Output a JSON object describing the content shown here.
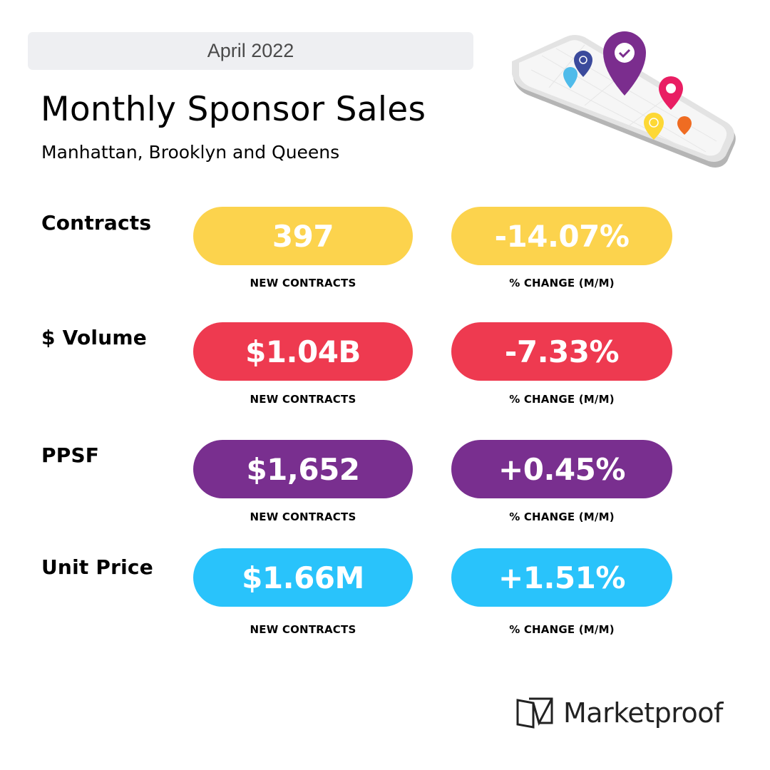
{
  "header": {
    "date": "April 2022",
    "title": "Monthly Sponsor Sales",
    "subtitle": "Manhattan, Brooklyn and Queens"
  },
  "illustration": {
    "icon": "phone-map-pins-icon",
    "pin_colors": [
      "#7b2d8e",
      "#3b4a9c",
      "#4fbbea",
      "#e91e63",
      "#fdd835",
      "#ef6c22"
    ]
  },
  "metrics": [
    {
      "label": "Contracts",
      "value": "397",
      "value_caption": "NEW CONTRACTS",
      "change": "-14.07%",
      "change_caption": "% CHANGE (M/M)",
      "color": "#fcd34d"
    },
    {
      "label": "$ Volume",
      "value": "$1.04B",
      "value_caption": "NEW CONTRACTS",
      "change": "-7.33%",
      "change_caption": "% CHANGE (M/M)",
      "color": "#ee3a50"
    },
    {
      "label": "PPSF",
      "value": "$1,652",
      "value_caption": "NEW CONTRACTS",
      "change": "+0.45%",
      "change_caption": "% CHANGE (M/M)",
      "color": "#792f8f"
    },
    {
      "label": "Unit Price",
      "value": "$1.66M",
      "value_caption": "NEW CONTRACTS",
      "change": "+1.51%",
      "change_caption": "% CHANGE (M/M)",
      "color": "#29c3fb"
    }
  ],
  "footer": {
    "brand": "Marketproof"
  }
}
